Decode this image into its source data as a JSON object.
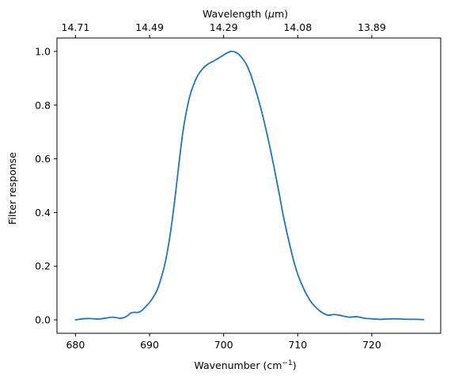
{
  "chart_data": {
    "type": "line",
    "xlabel": "Wavenumber (cm",
    "xlabel_sup": "−1",
    "xlabel_end": ")",
    "ylabel": "Filter response",
    "top_xlabel_pre": "Wavelength (",
    "top_xlabel_mu": "μ",
    "top_xlabel_post": "m)",
    "xlim": [
      677.5,
      729.3
    ],
    "ylim": [
      -0.05,
      1.05
    ],
    "x_ticks": [
      680,
      690,
      700,
      710,
      720
    ],
    "x_tick_labels": [
      "680",
      "690",
      "700",
      "710",
      "720"
    ],
    "y_ticks": [
      0.0,
      0.2,
      0.4,
      0.6,
      0.8,
      1.0
    ],
    "y_tick_labels": [
      "0.0",
      "0.2",
      "0.4",
      "0.6",
      "0.8",
      "1.0"
    ],
    "top_ticks_x": [
      680,
      690,
      700,
      710,
      720
    ],
    "top_tick_labels": [
      "14.71",
      "14.49",
      "14.29",
      "14.08",
      "13.89"
    ],
    "grid": false,
    "series": [
      {
        "color": "#1f77b4",
        "x": [
          680,
          681,
          682,
          683,
          684,
          685,
          686,
          686.5,
          687,
          687.5,
          688,
          688.5,
          689,
          689.5,
          690,
          690.5,
          691,
          691.5,
          692,
          692.5,
          693,
          693.5,
          694,
          694.5,
          695,
          695.5,
          696,
          696.5,
          697,
          697.5,
          698,
          698.5,
          699,
          699.5,
          700,
          700.5,
          701,
          701.5,
          702,
          702.5,
          703,
          703.5,
          704,
          704.5,
          705,
          705.5,
          706,
          706.5,
          707,
          707.5,
          708,
          708.5,
          709,
          709.5,
          710,
          710.5,
          711,
          711.5,
          712,
          713,
          714,
          715,
          716,
          717,
          718,
          719,
          720,
          721,
          722,
          723,
          724,
          725,
          726,
          727
        ],
        "y": [
          0.0,
          0.004,
          0.005,
          0.003,
          0.006,
          0.01,
          0.006,
          0.008,
          0.015,
          0.026,
          0.028,
          0.028,
          0.036,
          0.05,
          0.065,
          0.085,
          0.11,
          0.15,
          0.2,
          0.27,
          0.36,
          0.47,
          0.59,
          0.7,
          0.78,
          0.84,
          0.88,
          0.91,
          0.93,
          0.945,
          0.955,
          0.962,
          0.97,
          0.978,
          0.987,
          0.995,
          1.0,
          0.998,
          0.99,
          0.975,
          0.955,
          0.925,
          0.885,
          0.84,
          0.79,
          0.735,
          0.675,
          0.61,
          0.54,
          0.47,
          0.395,
          0.33,
          0.27,
          0.215,
          0.17,
          0.135,
          0.105,
          0.08,
          0.06,
          0.033,
          0.018,
          0.02,
          0.015,
          0.01,
          0.012,
          0.006,
          0.004,
          0.002,
          0.003,
          0.004,
          0.003,
          0.002,
          0.002,
          0.001
        ]
      }
    ]
  }
}
